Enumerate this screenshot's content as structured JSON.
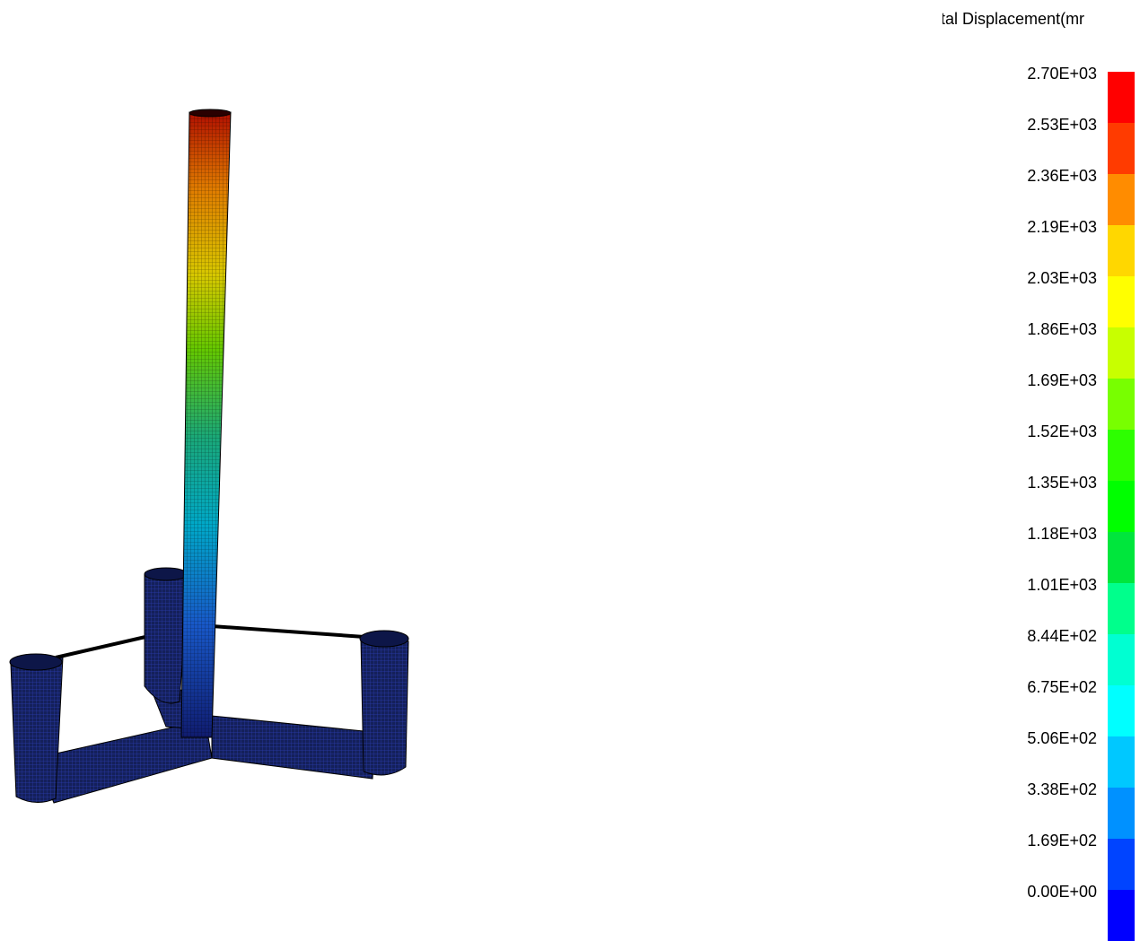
{
  "legend": {
    "title": "otal Displacement(mr",
    "unit": "mm",
    "max": 2700,
    "min": 0,
    "labels": [
      "2.70E+03",
      "2.53E+03",
      "2.36E+03",
      "2.19E+03",
      "2.03E+03",
      "1.86E+03",
      "1.69E+03",
      "1.52E+03",
      "1.35E+03",
      "1.18E+03",
      "1.01E+03",
      "8.44E+02",
      "6.75E+02",
      "5.06E+02",
      "3.38E+02",
      "1.69E+02",
      "0.00E+00"
    ],
    "colors": [
      "#ff0000",
      "#ff3b00",
      "#ff8c00",
      "#ffd700",
      "#ffff00",
      "#c8ff00",
      "#78ff00",
      "#2dff00",
      "#00ff00",
      "#00e63c",
      "#00ff8c",
      "#00ffd2",
      "#00ffff",
      "#00c8ff",
      "#0091ff",
      "#0044ff",
      "#0000ff"
    ]
  },
  "model": {
    "mesh_color": "#0a0a55",
    "mesh_line_color": "#000000",
    "tower_top_color": "#c81a00",
    "tower_mid_color": "#7ad400",
    "tower_low_color": "#00b4d8",
    "tower_base_color": "#1030a0"
  }
}
